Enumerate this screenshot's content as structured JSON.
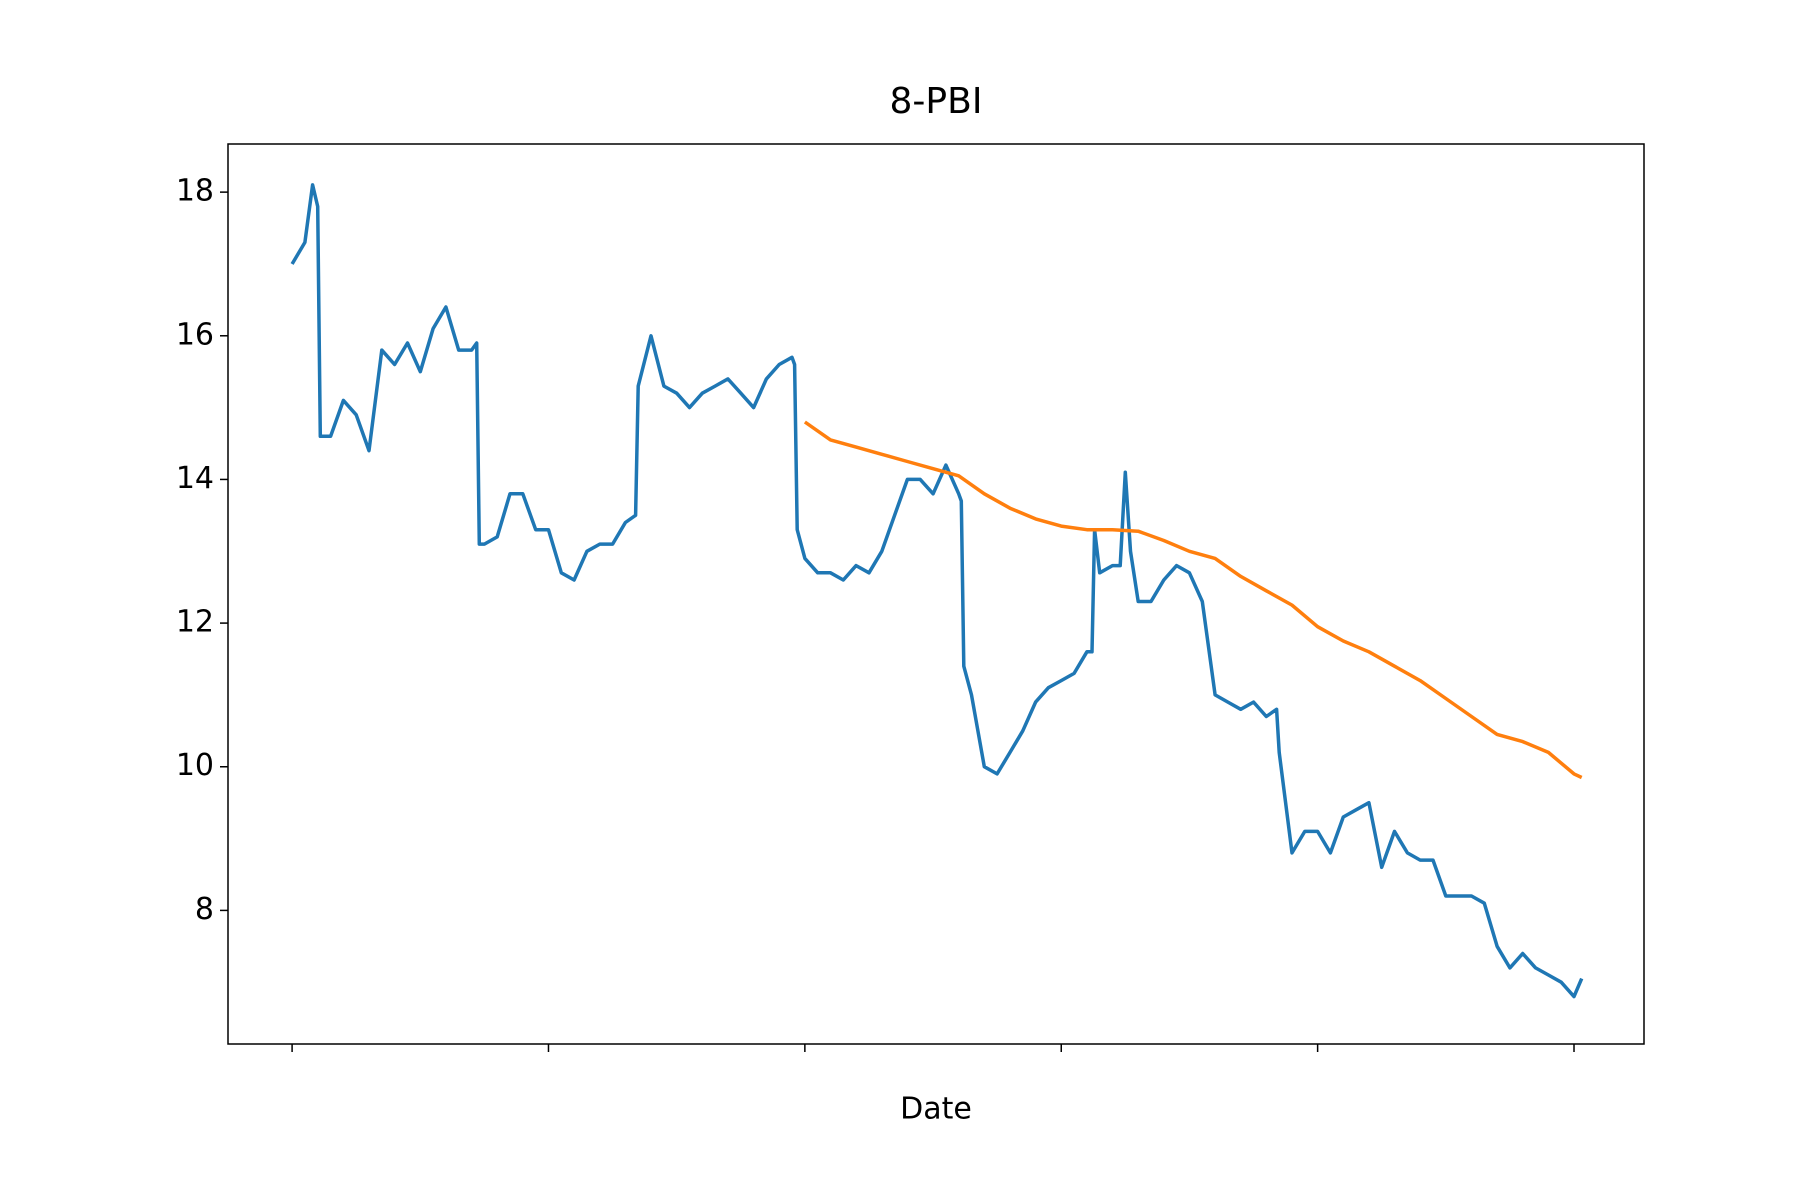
{
  "chart_data": {
    "type": "line",
    "title": "8-PBI",
    "xlabel": "Date",
    "xlim": [
      -25,
      527.3
    ],
    "xticks": [
      0,
      100,
      200,
      300,
      400,
      500
    ],
    "ylim": [
      6.14,
      18.67
    ],
    "yticks": [
      8,
      10,
      12,
      14,
      16,
      18
    ],
    "series": [
      {
        "color": "#1f77b4",
        "x": [
          0,
          5,
          8,
          10,
          11,
          15,
          20,
          25,
          30,
          35,
          40,
          45,
          50,
          55,
          60,
          65,
          70,
          72,
          73,
          75,
          80,
          85,
          90,
          95,
          100,
          105,
          110,
          115,
          120,
          125,
          130,
          134,
          135,
          140,
          145,
          150,
          155,
          160,
          165,
          170,
          175,
          180,
          185,
          190,
          195,
          196,
          197,
          200,
          205,
          210,
          215,
          220,
          225,
          230,
          235,
          240,
          245,
          250,
          255,
          260,
          261,
          262,
          265,
          270,
          275,
          280,
          285,
          290,
          295,
          300,
          305,
          310,
          312,
          313,
          315,
          320,
          323,
          325,
          327,
          330,
          335,
          340,
          345,
          350,
          355,
          360,
          365,
          370,
          375,
          380,
          384,
          385,
          390,
          395,
          400,
          405,
          410,
          415,
          420,
          425,
          430,
          435,
          440,
          445,
          450,
          455,
          460,
          465,
          470,
          475,
          480,
          485,
          490,
          495,
          500,
          503
        ],
        "values": [
          17.0,
          17.3,
          18.1,
          17.8,
          14.6,
          14.6,
          15.1,
          14.9,
          14.4,
          15.8,
          15.6,
          15.9,
          15.5,
          16.1,
          16.4,
          15.8,
          15.8,
          15.9,
          13.1,
          13.1,
          13.2,
          13.8,
          13.8,
          13.3,
          13.3,
          12.7,
          12.6,
          13.0,
          13.1,
          13.1,
          13.4,
          13.5,
          15.3,
          16.0,
          15.3,
          15.2,
          15.0,
          15.2,
          15.3,
          15.4,
          15.2,
          15.0,
          15.4,
          15.6,
          15.7,
          15.6,
          13.3,
          12.9,
          12.7,
          12.7,
          12.6,
          12.8,
          12.7,
          13.0,
          13.5,
          14.0,
          14.0,
          13.8,
          14.2,
          13.8,
          13.7,
          11.4,
          11.0,
          10.0,
          9.9,
          10.2,
          10.5,
          10.9,
          11.1,
          11.2,
          11.3,
          11.6,
          11.6,
          13.3,
          12.7,
          12.8,
          12.8,
          14.1,
          13.0,
          12.3,
          12.3,
          12.6,
          12.8,
          12.7,
          12.3,
          11.0,
          10.9,
          10.8,
          10.9,
          10.7,
          10.8,
          10.2,
          8.8,
          9.1,
          9.1,
          8.8,
          9.3,
          9.4,
          9.5,
          8.6,
          9.1,
          8.8,
          8.7,
          8.7,
          8.2,
          8.2,
          8.2,
          8.1,
          7.5,
          7.2,
          7.4,
          7.2,
          7.1,
          7.0,
          6.8,
          7.05
        ]
      },
      {
        "color": "#ff7f0e",
        "x": [
          200,
          210,
          220,
          230,
          240,
          250,
          260,
          270,
          280,
          290,
          300,
          310,
          320,
          330,
          340,
          350,
          360,
          370,
          380,
          390,
          400,
          410,
          420,
          430,
          440,
          450,
          460,
          470,
          480,
          490,
          500,
          503
        ],
        "values": [
          14.8,
          14.55,
          14.45,
          14.35,
          14.25,
          14.15,
          14.05,
          13.8,
          13.6,
          13.45,
          13.35,
          13.3,
          13.3,
          13.28,
          13.15,
          13.0,
          12.9,
          12.65,
          12.45,
          12.25,
          11.95,
          11.75,
          11.6,
          11.4,
          11.2,
          10.95,
          10.7,
          10.45,
          10.35,
          10.2,
          9.9,
          9.85
        ]
      }
    ]
  }
}
